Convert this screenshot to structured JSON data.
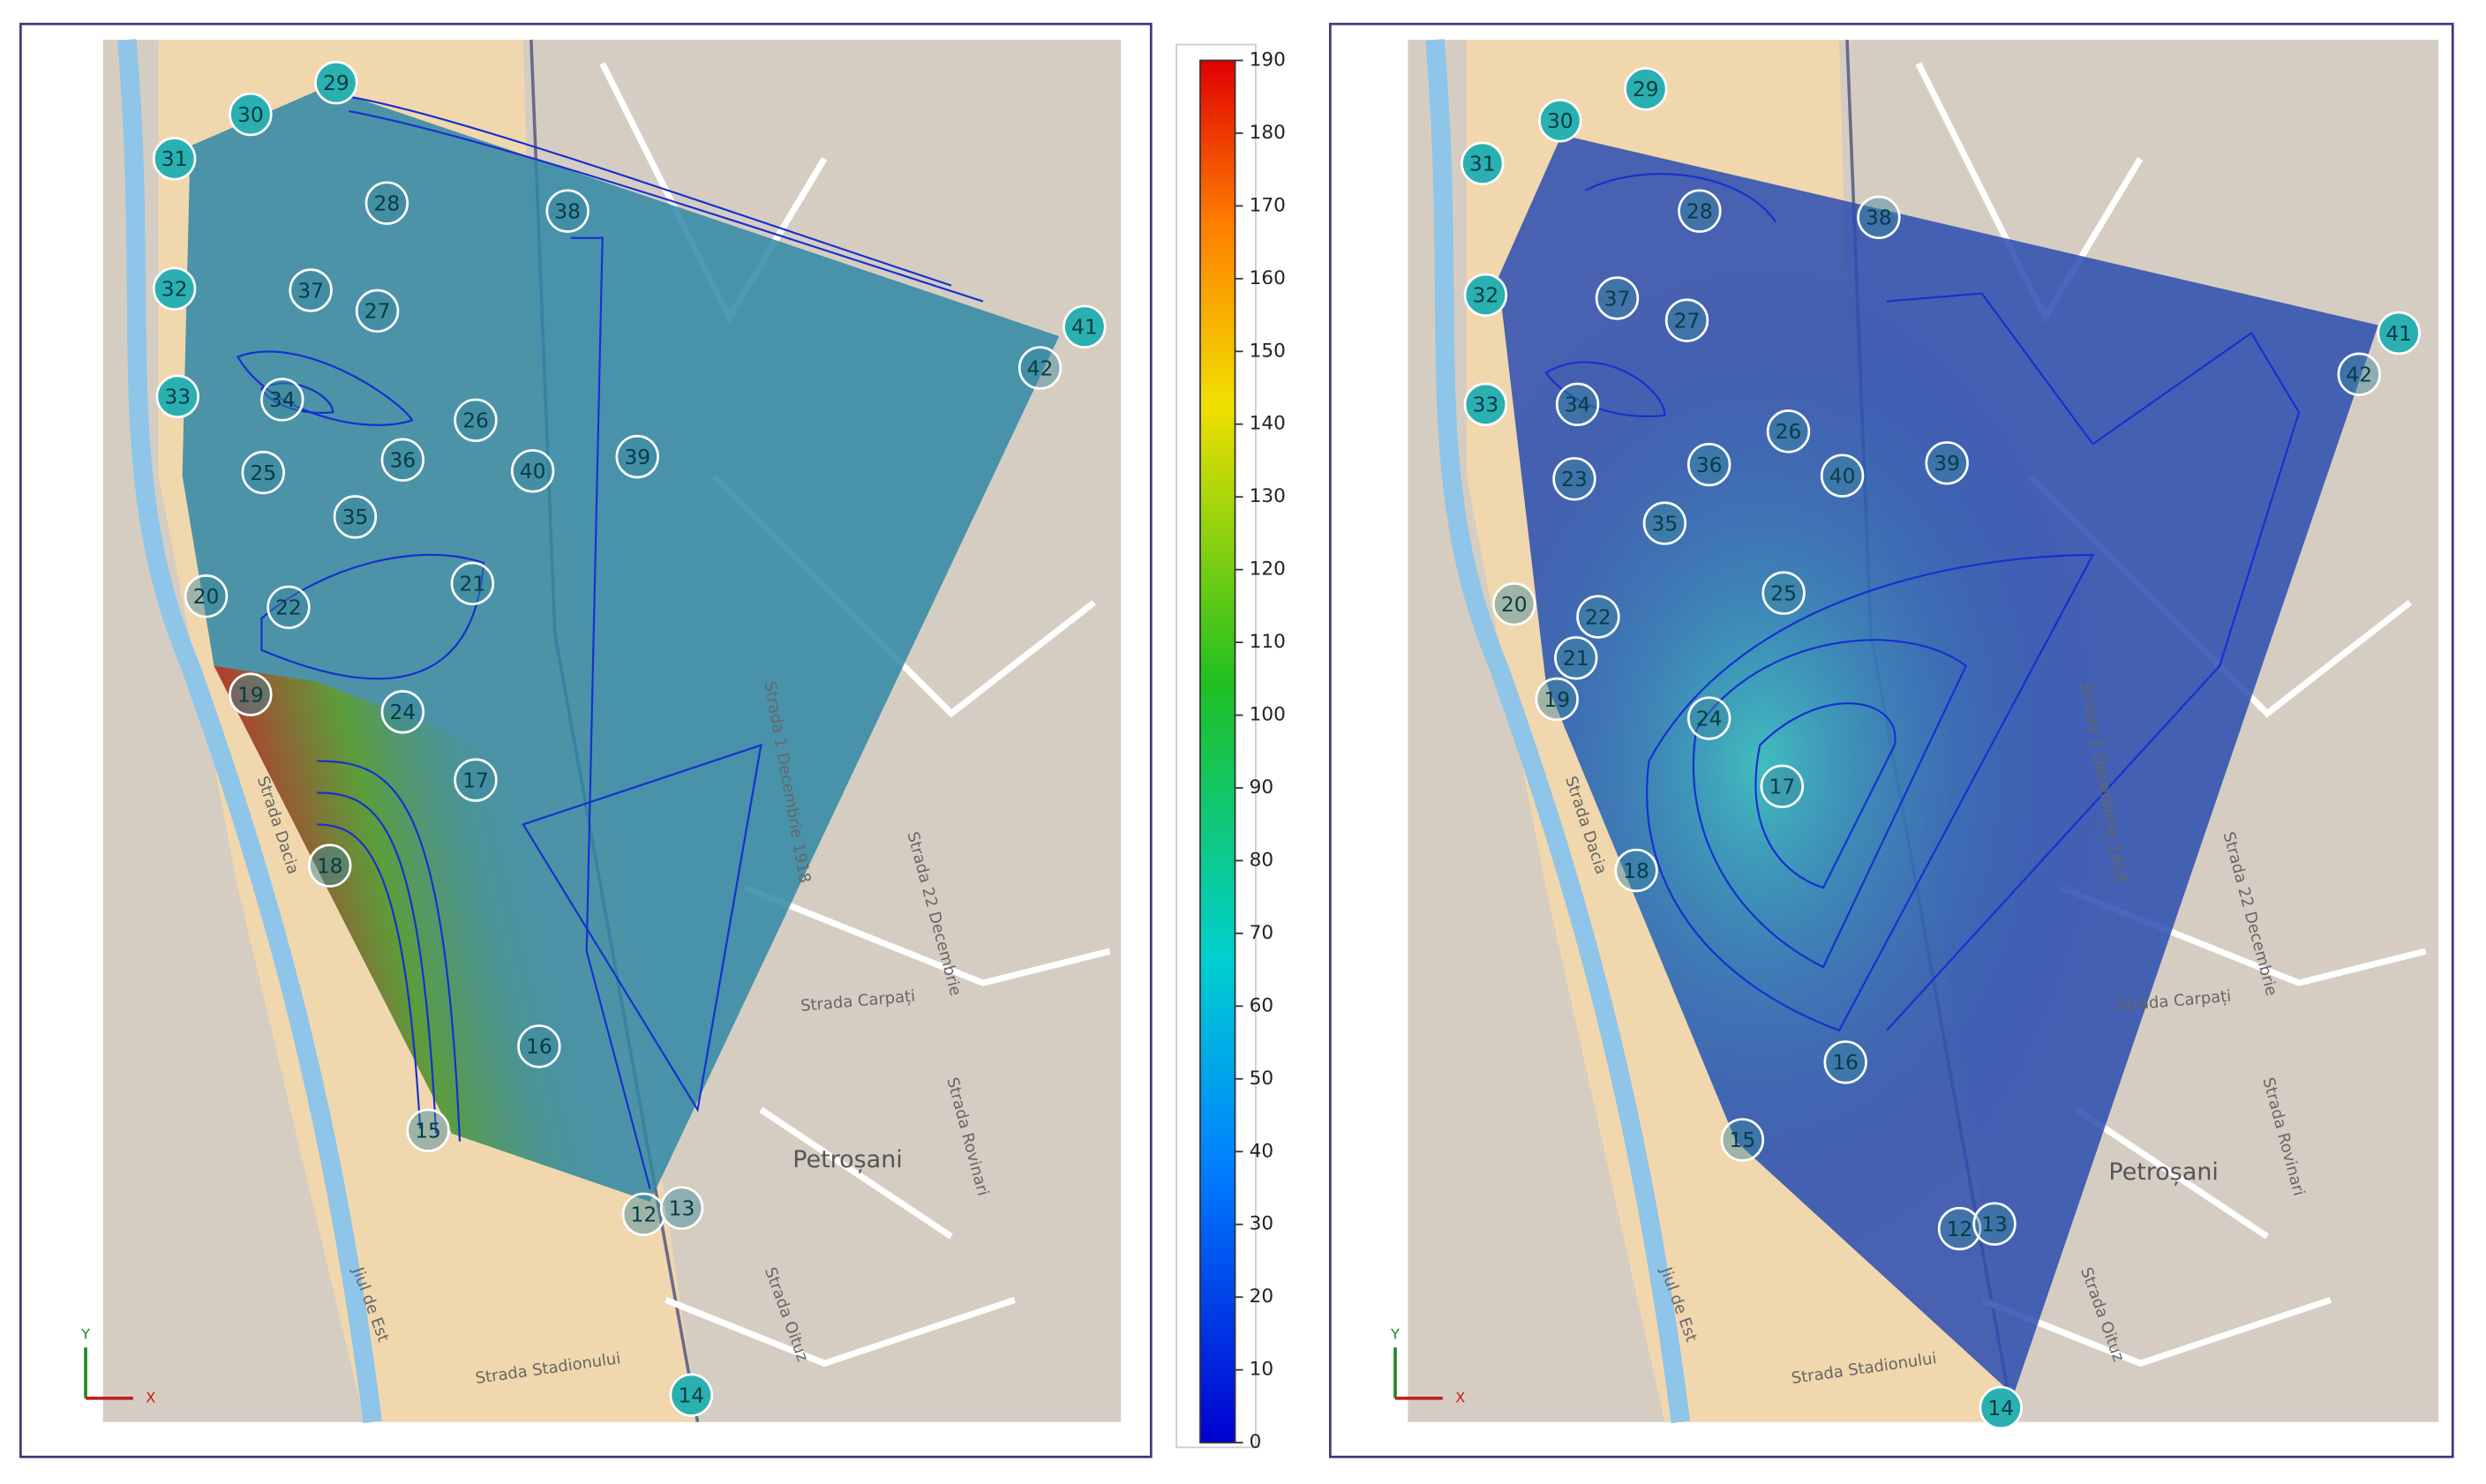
{
  "colorbar": {
    "clim": [
      0,
      190
    ],
    "ticks": [
      0,
      10,
      20,
      30,
      40,
      50,
      60,
      70,
      80,
      90,
      100,
      110,
      120,
      130,
      140,
      150,
      160,
      170,
      180,
      190
    ]
  },
  "left_panel": {
    "markers": [
      "29",
      "30",
      "31",
      "32",
      "33",
      "28",
      "38",
      "37",
      "27",
      "34",
      "26",
      "36",
      "40",
      "39",
      "25",
      "35",
      "20",
      "22",
      "21",
      "19",
      "24",
      "17",
      "18",
      "16",
      "15",
      "12",
      "13",
      "14",
      "41",
      "42"
    ]
  },
  "right_panel": {
    "markers": [
      "29",
      "30",
      "31",
      "32",
      "33",
      "28",
      "38",
      "37",
      "27",
      "34",
      "26",
      "36",
      "40",
      "39",
      "23",
      "35",
      "25",
      "20",
      "22",
      "21",
      "19",
      "24",
      "17",
      "18",
      "16",
      "15",
      "12",
      "13",
      "14",
      "41",
      "42"
    ]
  },
  "labels": {
    "river": "Jiul de Est",
    "street_dacia": "Strada Dacia",
    "street_stadion": "Strada Stadionului",
    "street_dec1": "Strada 1 Decembrie 1918",
    "street_dec22": "Strada 22 Decembrie",
    "street_carpati": "Strada Carpați",
    "town": "Petroșani",
    "street_oituz": "Strada Oituz",
    "street_rovinari": "Strada Rovinari",
    "axis_x": "X",
    "axis_y": "Y"
  }
}
